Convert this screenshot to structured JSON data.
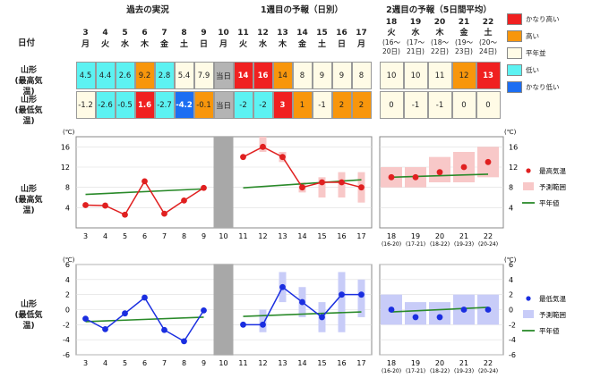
{
  "sections": {
    "past": "過去の実況",
    "week1": "1週目の予報（日別）",
    "week2": "2週目の予報（5日間平均）"
  },
  "date_label": "日付",
  "days": [
    {
      "d": "3",
      "w": "月"
    },
    {
      "d": "4",
      "w": "火"
    },
    {
      "d": "5",
      "w": "水"
    },
    {
      "d": "6",
      "w": "木"
    },
    {
      "d": "7",
      "w": "金"
    },
    {
      "d": "8",
      "w": "土"
    },
    {
      "d": "9",
      "w": "日"
    },
    {
      "d": "10",
      "w": "月"
    },
    {
      "d": "11",
      "w": "火"
    },
    {
      "d": "12",
      "w": "水"
    },
    {
      "d": "13",
      "w": "木"
    },
    {
      "d": "14",
      "w": "金"
    },
    {
      "d": "15",
      "w": "土"
    },
    {
      "d": "16",
      "w": "日"
    },
    {
      "d": "17",
      "w": "月"
    }
  ],
  "week2_cols": [
    {
      "d": "18",
      "w": "火",
      "r1": "(16～",
      "r2": "20日)"
    },
    {
      "d": "19",
      "w": "水",
      "r1": "(17～",
      "r2": "21日)"
    },
    {
      "d": "20",
      "w": "木",
      "r1": "(18～",
      "r2": "22日)"
    },
    {
      "d": "21",
      "w": "金",
      "r1": "(19～",
      "r2": "23日)"
    },
    {
      "d": "22",
      "w": "土",
      "r1": "(20～",
      "r2": "24日)"
    }
  ],
  "rows": [
    {
      "l1": "山形",
      "l2": "(最高気温)",
      "cells": [
        [
          "4.5",
          "cyan"
        ],
        [
          "4.4",
          "cyan"
        ],
        [
          "2.6",
          "cyan"
        ],
        [
          "9.2",
          "orange"
        ],
        [
          "2.8",
          "cyan"
        ],
        [
          "5.4",
          "white"
        ],
        [
          "7.9",
          "white"
        ],
        [
          "当日",
          "gray"
        ],
        [
          "14",
          "red"
        ],
        [
          "16",
          "red"
        ],
        [
          "14",
          "orange"
        ],
        [
          "8",
          "white"
        ],
        [
          "9",
          "white"
        ],
        [
          "9",
          "white"
        ],
        [
          "8",
          "white"
        ]
      ],
      "w2": [
        [
          "10",
          "white"
        ],
        [
          "10",
          "white"
        ],
        [
          "11",
          "white"
        ],
        [
          "12",
          "orange"
        ],
        [
          "13",
          "red"
        ]
      ]
    },
    {
      "l1": "山形",
      "l2": "(最低気温)",
      "cells": [
        [
          "-1.2",
          "white"
        ],
        [
          "-2.6",
          "cyan"
        ],
        [
          "-0.5",
          "cyan"
        ],
        [
          "1.6",
          "red"
        ],
        [
          "-2.7",
          "cyan"
        ],
        [
          "-4.2",
          "blue"
        ],
        [
          "-0.1",
          "orange"
        ],
        [
          "当日",
          "gray"
        ],
        [
          "-2",
          "cyan"
        ],
        [
          "-2",
          "cyan"
        ],
        [
          "3",
          "red"
        ],
        [
          "1",
          "orange"
        ],
        [
          "-1",
          "white"
        ],
        [
          "2",
          "orange"
        ],
        [
          "2",
          "orange"
        ]
      ],
      "w2": [
        [
          "0",
          "white"
        ],
        [
          "-1",
          "white"
        ],
        [
          "-1",
          "white"
        ],
        [
          "0",
          "white"
        ],
        [
          "0",
          "white"
        ]
      ]
    }
  ],
  "legend": [
    {
      "label": "かなり高い",
      "color": "#f02020"
    },
    {
      "label": "高い",
      "color": "#f8960c"
    },
    {
      "label": "平年並",
      "color": "#fffbe6"
    },
    {
      "label": "低い",
      "color": "#5cf2f2"
    },
    {
      "label": "かなり低い",
      "color": "#1c6ef2"
    }
  ],
  "colors": {
    "red": "#f02020",
    "orange": "#f8960c",
    "white": "#fffbe6",
    "cyan": "#5cf2f2",
    "blue": "#1c6ef2",
    "gray": "#b4b4b4"
  },
  "chart_data": [
    {
      "type": "line",
      "ylabel": "山形\n(最高気温)",
      "unit": "(℃)",
      "ylim": [
        0,
        18
      ],
      "yticks": [
        4,
        8,
        12,
        16
      ],
      "x_labels": [
        "3",
        "4",
        "5",
        "6",
        "7",
        "8",
        "9",
        "10",
        "11",
        "12",
        "13",
        "14",
        "15",
        "16",
        "17"
      ],
      "week2_labels": [
        [
          "18",
          "(16-20)"
        ],
        [
          "19",
          "(17-21)"
        ],
        [
          "20",
          "(18-22)"
        ],
        [
          "21",
          "(19-23)"
        ],
        [
          "22",
          "(20-24)"
        ]
      ],
      "series": [
        {
          "name": "past",
          "values": [
            4.5,
            4.4,
            2.6,
            9.2,
            2.8,
            5.4,
            7.9
          ]
        },
        {
          "name": "forecast",
          "values": [
            14,
            16,
            14,
            8,
            9,
            9,
            8
          ]
        },
        {
          "name": "最高気温",
          "values": [
            10,
            10,
            11,
            12,
            13
          ]
        }
      ],
      "forecast_range": [
        [
          14,
          14
        ],
        [
          15,
          18
        ],
        [
          13,
          15
        ],
        [
          7,
          9
        ],
        [
          6,
          10
        ],
        [
          6,
          11
        ],
        [
          5,
          11
        ]
      ],
      "week2_range": [
        [
          8,
          12
        ],
        [
          8,
          12
        ],
        [
          9,
          14
        ],
        [
          9,
          15
        ],
        [
          10,
          16
        ]
      ],
      "normal_past": [
        6.6,
        7.7
      ],
      "normal_week1": [
        7.9,
        9.5
      ],
      "normal_week2": [
        10.0,
        10.6
      ],
      "legend": [
        "最高気温",
        "予測範囲",
        "平年値"
      ]
    },
    {
      "type": "line",
      "ylabel": "山形\n(最低気温)",
      "unit": "(℃)",
      "ylim": [
        -6,
        6
      ],
      "yticks": [
        -6,
        -4,
        -2,
        0,
        2,
        4,
        6
      ],
      "x_labels": [
        "3",
        "4",
        "5",
        "6",
        "7",
        "8",
        "9",
        "10",
        "11",
        "12",
        "13",
        "14",
        "15",
        "16",
        "17"
      ],
      "week2_labels": [
        [
          "18",
          "(16-20)"
        ],
        [
          "19",
          "(17-21)"
        ],
        [
          "20",
          "(18-22)"
        ],
        [
          "21",
          "(19-23)"
        ],
        [
          "22",
          "(20-24)"
        ]
      ],
      "series": [
        {
          "name": "past",
          "values": [
            -1.2,
            -2.6,
            -0.5,
            1.6,
            -2.7,
            -4.2,
            -0.1
          ]
        },
        {
          "name": "forecast",
          "values": [
            -2,
            -2,
            3,
            1,
            -1,
            2,
            2
          ]
        },
        {
          "name": "最低気温",
          "values": [
            0,
            -1,
            -1,
            0,
            0
          ]
        }
      ],
      "forecast_range": [
        [
          -2,
          -2
        ],
        [
          -3,
          0
        ],
        [
          1,
          5
        ],
        [
          -1,
          3
        ],
        [
          -3,
          1
        ],
        [
          -3,
          5
        ],
        [
          -1,
          4
        ]
      ],
      "week2_range": [
        [
          -2,
          2
        ],
        [
          -2,
          1
        ],
        [
          -2,
          1
        ],
        [
          -2,
          2
        ],
        [
          -2,
          2
        ]
      ],
      "normal_past": [
        -1.6,
        -1.0
      ],
      "normal_week1": [
        -0.9,
        -0.3
      ],
      "normal_week2": [
        -0.3,
        0.3
      ],
      "legend": [
        "最低気温",
        "予測範囲",
        "平年値"
      ]
    }
  ]
}
